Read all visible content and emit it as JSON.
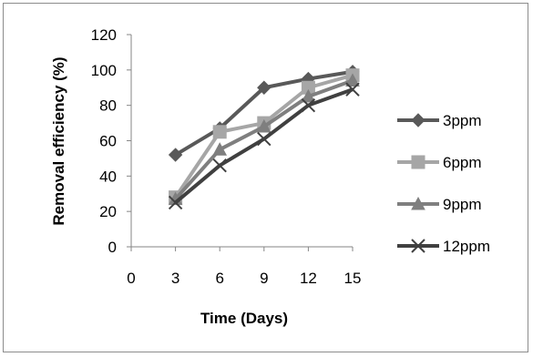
{
  "chart_data": {
    "type": "line",
    "x": [
      3,
      6,
      9,
      12,
      15
    ],
    "series": [
      {
        "name": "3ppm",
        "values": [
          52,
          67,
          90,
          95,
          99
        ],
        "color": "#595959",
        "marker": "diamond"
      },
      {
        "name": "6ppm",
        "values": [
          28,
          65,
          70,
          90,
          97
        ],
        "color": "#a6a6a6",
        "marker": "square"
      },
      {
        "name": "9ppm",
        "values": [
          27,
          55,
          68,
          85,
          94
        ],
        "color": "#7f7f7f",
        "marker": "triangle"
      },
      {
        "name": "12ppm",
        "values": [
          25,
          46,
          61,
          80,
          89
        ],
        "color": "#404040",
        "marker": "x"
      }
    ],
    "xlabel": "Time (Days)",
    "ylabel": "Removal efficiency (%)",
    "xlim": [
      0,
      15
    ],
    "ylim": [
      0,
      120
    ],
    "xticks": [
      0,
      3,
      6,
      9,
      12,
      15
    ],
    "yticks": [
      0,
      20,
      40,
      60,
      80,
      100,
      120
    ],
    "grid": false,
    "legend_position": "right"
  }
}
